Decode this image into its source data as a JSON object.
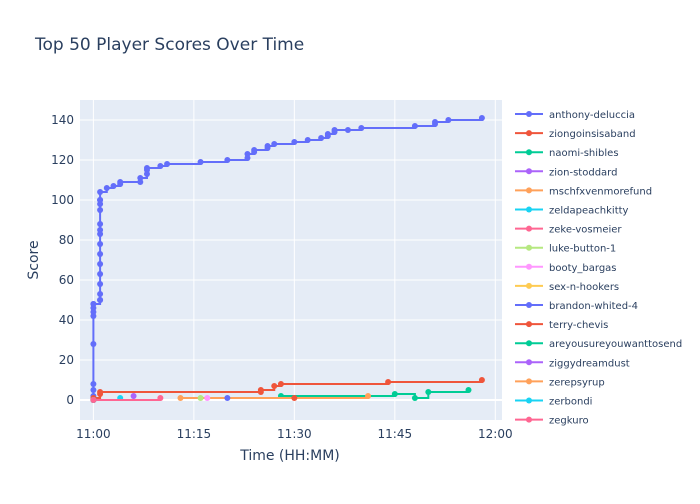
{
  "chart_data": {
    "type": "line",
    "title": "Top 50 Player Scores Over Time",
    "xlabel": "Time (HH:MM)",
    "ylabel": "Score",
    "xlim": [
      "10:58",
      "12:01"
    ],
    "ylim": [
      -10,
      150
    ],
    "x_ticks": [
      "11:00",
      "11:15",
      "11:30",
      "11:45",
      "12:00"
    ],
    "y_ticks": [
      0,
      20,
      40,
      60,
      80,
      100,
      120,
      140
    ],
    "grid": true,
    "legend_position": "right",
    "series": [
      {
        "name": "anthony-deluccia",
        "color": "#636efa",
        "x": [
          "11:00",
          "11:00",
          "11:00",
          "11:00",
          "11:00",
          "11:00",
          "11:00",
          "11:00",
          "11:00",
          "11:00",
          "11:01",
          "11:01",
          "11:01",
          "11:01",
          "11:01",
          "11:01",
          "11:01",
          "11:01",
          "11:01",
          "11:01",
          "11:01",
          "11:01",
          "11:01",
          "11:01",
          "11:01",
          "11:01",
          "11:02",
          "11:03",
          "11:04",
          "11:04",
          "11:07",
          "11:07",
          "11:08",
          "11:08",
          "11:08",
          "11:10",
          "11:11",
          "11:16",
          "11:20",
          "11:23",
          "11:23",
          "11:24",
          "11:24",
          "11:26",
          "11:26",
          "11:27",
          "11:30",
          "11:32",
          "11:34",
          "11:35",
          "11:35",
          "11:36",
          "11:36",
          "11:38",
          "11:40",
          "11:48",
          "11:51",
          "11:51",
          "11:53",
          "11:58"
        ],
        "y": [
          0,
          2,
          5,
          8,
          28,
          42,
          44,
          46,
          48,
          48,
          50,
          50,
          53,
          58,
          63,
          68,
          73,
          78,
          83,
          85,
          88,
          95,
          98,
          100,
          100,
          104,
          106,
          107,
          108,
          109,
          109,
          111,
          113,
          115,
          116,
          117,
          118,
          119,
          120,
          121,
          123,
          124,
          125,
          126,
          127,
          128,
          129,
          130,
          131,
          132,
          133,
          134,
          135,
          135,
          136,
          137,
          138,
          139,
          140,
          141
        ]
      },
      {
        "name": "ziongoinsisaband",
        "color": "#ef553b",
        "x": [
          "11:00",
          "11:00",
          "11:01",
          "11:01",
          "11:25",
          "11:25",
          "11:27",
          "11:28",
          "11:44",
          "11:58"
        ],
        "y": [
          0,
          1,
          3,
          4,
          4,
          5,
          7,
          8,
          9,
          10
        ]
      },
      {
        "name": "naomi-shibles",
        "color": "#00cc96",
        "x": [
          "11:28",
          "11:45",
          "11:48",
          "11:50",
          "11:56"
        ],
        "y": [
          2,
          3,
          1,
          4,
          5
        ]
      },
      {
        "name": "zion-stoddard",
        "color": "#ab63fa",
        "x": [
          "11:00",
          "11:06"
        ],
        "y": [
          0,
          2
        ]
      },
      {
        "name": "mschfxvenmorefund",
        "color": "#ffa15a",
        "x": [
          "11:13",
          "11:41"
        ],
        "y": [
          1,
          2
        ]
      },
      {
        "name": "zeldapeachkitty",
        "color": "#19d3f3",
        "x": [
          "11:00",
          "11:04"
        ],
        "y": [
          0,
          1
        ]
      },
      {
        "name": "zeke-vosmeier",
        "color": "#ff6692",
        "x": [
          "11:00",
          "11:10"
        ],
        "y": [
          0,
          1
        ]
      },
      {
        "name": "luke-button-1",
        "color": "#b6e880",
        "x": [
          "11:16"
        ],
        "y": [
          1
        ]
      },
      {
        "name": "booty_bargas",
        "color": "#ff97ff",
        "x": [
          "11:17"
        ],
        "y": [
          1
        ]
      },
      {
        "name": "sex-n-hookers",
        "color": "#fecb52",
        "x": [
          "11:00"
        ],
        "y": [
          0
        ]
      },
      {
        "name": "brandon-whited-4",
        "color": "#636efa",
        "x": [
          "11:20"
        ],
        "y": [
          1
        ]
      },
      {
        "name": "terry-chevis",
        "color": "#ef553b",
        "x": [
          "11:30"
        ],
        "y": [
          1
        ]
      },
      {
        "name": "areyousureyouwanttosend",
        "color": "#00cc96",
        "x": [
          "11:00"
        ],
        "y": [
          0
        ]
      },
      {
        "name": "ziggydreamdust",
        "color": "#ab63fa",
        "x": [
          "11:00"
        ],
        "y": [
          0
        ]
      },
      {
        "name": "zerepsyrup",
        "color": "#ffa15a",
        "x": [
          "11:00"
        ],
        "y": [
          0
        ]
      },
      {
        "name": "zerbondi",
        "color": "#19d3f3",
        "x": [
          "11:00"
        ],
        "y": [
          0
        ]
      },
      {
        "name": "zegkuro",
        "color": "#ff6692",
        "x": [
          "11:00"
        ],
        "y": [
          0
        ]
      }
    ]
  }
}
